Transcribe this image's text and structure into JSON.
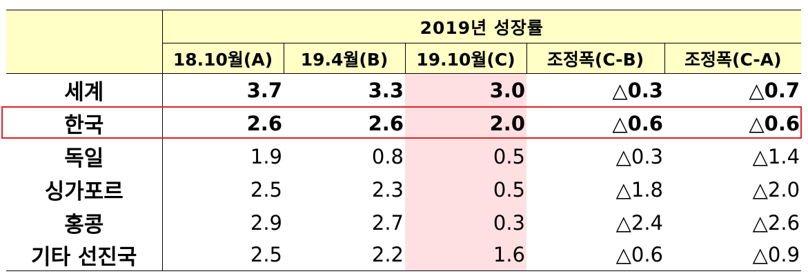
{
  "table": {
    "group_header": "2019년  성장률",
    "columns": [
      "18.10월(A)",
      "19.4월(B)",
      "19.10월(C)",
      "조정폭(C-B)",
      "조정폭(C-A)"
    ],
    "rows": [
      {
        "label": "세계",
        "values": [
          "3.7",
          "3.3",
          "3.0",
          "△0.3",
          "△0.7"
        ],
        "bold": true
      },
      {
        "label": "한국",
        "values": [
          "2.6",
          "2.6",
          "2.0",
          "△0.6",
          "△0.6"
        ],
        "bold": true,
        "highlighted": true
      },
      {
        "label": "독일",
        "values": [
          "1.9",
          "0.8",
          "0.5",
          "△0.3",
          "△1.4"
        ],
        "bold": false
      },
      {
        "label": "싱가포르",
        "values": [
          "2.5",
          "2.3",
          "0.5",
          "△1.8",
          "△2.0"
        ],
        "bold": false
      },
      {
        "label": "홍콩",
        "values": [
          "2.9",
          "2.7",
          "0.3",
          "△2.4",
          "△2.6"
        ],
        "bold": false
      },
      {
        "label": "기타 선진국",
        "values": [
          "2.5",
          "2.2",
          "1.6",
          "△0.6",
          "△0.9"
        ],
        "bold": false
      }
    ]
  },
  "colors": {
    "header_bg": "#ffffc6",
    "highlight_column_bg": "#ffe0e2",
    "highlight_border": "#e02020"
  }
}
